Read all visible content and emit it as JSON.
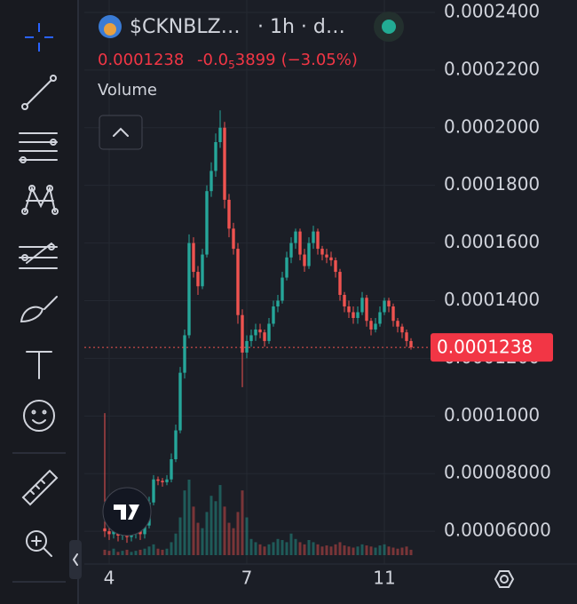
{
  "header": {
    "symbol": "$CKNBLZ…",
    "interval": "· 1h · d…",
    "change_prefix": "-0.0",
    "change_subscript": "5",
    "change_digits": "3899",
    "change_pct": "(−3.05%)",
    "volume_label": "Volume"
  },
  "chart_data": {
    "type": "candlestick",
    "open": [
      6.1e-05,
      6e-05,
      5.9e-05,
      6e-05,
      5.85e-05,
      5.95e-05,
      5.8e-05,
      5.9e-05,
      6e-05,
      5.9e-05,
      6.2e-05,
      7e-05,
      7.8e-05,
      7.75e-05,
      7.7e-05,
      7.8e-05,
      8.5e-05,
      9.5e-05,
      0.000115,
      0.000128,
      0.00016,
      0.00015,
      0.000145,
      0.000156,
      0.000178,
      0.000185,
      0.000195,
      0.0002,
      0.000175,
      0.000165,
      0.000158,
      0.000135,
      0.000122,
      0.000126,
      0.000128,
      0.00013,
      0.000129,
      0.000126,
      0.000132,
      0.000138,
      0.00014,
      0.000148,
      0.000155,
      0.00016,
      0.000164,
      0.000156,
      0.000152,
      0.00016,
      0.000164,
      0.000158,
      0.000156,
      0.000155,
      0.000154,
      0.00015,
      0.000142,
      0.000138,
      0.000136,
      0.000134,
      0.000136,
      0.000141,
      0.000133,
      0.00013,
      0.000132,
      0.000136,
      0.00014,
      0.000138,
      0.000133,
      0.000131,
      0.000129,
      0.000126
    ],
    "high": [
      0.000101,
      6.2e-05,
      6.15e-05,
      6.1e-05,
      6.1e-05,
      6.05e-05,
      6.05e-05,
      6.15e-05,
      6.1e-05,
      6.4e-05,
      7.2e-05,
      7.95e-05,
      7.9e-05,
      7.85e-05,
      7.95e-05,
      8.7e-05,
      9.7e-05,
      0.000117,
      0.00013,
      0.000163,
      0.000162,
      0.000152,
      0.000158,
      0.00018,
      0.000188,
      0.000198,
      0.000206,
      0.000202,
      0.000177,
      0.000167,
      0.00016,
      0.000137,
      0.000128,
      0.00013,
      0.000132,
      0.000132,
      0.00013,
      0.000134,
      0.00014,
      0.000142,
      0.00015,
      0.000157,
      0.000162,
      0.000165,
      0.000165,
      0.000158,
      0.000162,
      0.000166,
      0.000165,
      0.000159,
      0.000158,
      0.000157,
      0.000155,
      0.000151,
      0.000143,
      0.00014,
      0.000138,
      0.000138,
      0.000143,
      0.000142,
      0.000134,
      0.000134,
      0.000138,
      0.000141,
      0.000141,
      0.000139,
      0.000134,
      0.000132,
      0.00013,
      0.000127
    ],
    "low": [
      5.8e-05,
      5.7e-05,
      5.75e-05,
      5.65e-05,
      5.7e-05,
      5.6e-05,
      5.65e-05,
      5.75e-05,
      5.7e-05,
      5.75e-05,
      6.1e-05,
      6.9e-05,
      7.6e-05,
      7.55e-05,
      7.6e-05,
      7.7e-05,
      8.4e-05,
      9.4e-05,
      0.000113,
      0.000127,
      0.000148,
      0.000142,
      0.000144,
      0.000155,
      0.000176,
      0.000183,
      0.000193,
      0.000172,
      0.000162,
      0.000156,
      0.000132,
      0.00011,
      0.00012,
      0.000124,
      0.000126,
      0.000127,
      0.000124,
      0.000125,
      0.000131,
      0.000136,
      0.000139,
      0.000147,
      0.000153,
      0.000158,
      0.000154,
      0.00015,
      0.000151,
      0.000158,
      0.000156,
      0.000154,
      0.000153,
      0.000152,
      0.000148,
      0.00014,
      0.000136,
      0.000134,
      0.000132,
      0.000132,
      0.000135,
      0.000131,
      0.000128,
      0.000129,
      0.000131,
      0.000135,
      0.000136,
      0.000131,
      0.000129,
      0.000127,
      0.000124,
      0.000123
    ],
    "close": [
      6e-05,
      5.9e-05,
      6e-05,
      5.85e-05,
      5.95e-05,
      5.8e-05,
      5.9e-05,
      6e-05,
      5.9e-05,
      6.2e-05,
      7e-05,
      7.8e-05,
      7.75e-05,
      7.7e-05,
      7.8e-05,
      8.5e-05,
      9.5e-05,
      0.000115,
      0.000128,
      0.00016,
      0.00015,
      0.000145,
      0.000156,
      0.000178,
      0.000185,
      0.000195,
      0.0002,
      0.000175,
      0.000165,
      0.000158,
      0.000135,
      0.000122,
      0.000126,
      0.000128,
      0.00013,
      0.000129,
      0.000126,
      0.000132,
      0.000138,
      0.00014,
      0.000148,
      0.000155,
      0.00016,
      0.000164,
      0.000156,
      0.000152,
      0.00016,
      0.000164,
      0.000158,
      0.000156,
      0.000155,
      0.000154,
      0.00015,
      0.000142,
      0.000138,
      0.000136,
      0.000134,
      0.000136,
      0.000141,
      0.000133,
      0.00013,
      0.000132,
      0.000136,
      0.00014,
      0.000138,
      0.000133,
      0.000131,
      0.000129,
      0.000126,
      0.0001238
    ],
    "volume": [
      5,
      4,
      6,
      3,
      4,
      5,
      3,
      4,
      5,
      6,
      8,
      10,
      6,
      5,
      6,
      12,
      20,
      35,
      60,
      70,
      45,
      30,
      25,
      40,
      55,
      50,
      65,
      45,
      30,
      25,
      40,
      60,
      35,
      15,
      12,
      10,
      8,
      10,
      12,
      15,
      14,
      12,
      20,
      15,
      12,
      10,
      14,
      12,
      10,
      8,
      9,
      8,
      10,
      12,
      9,
      8,
      7,
      8,
      10,
      9,
      8,
      7,
      9,
      10,
      8,
      7,
      6,
      7,
      8,
      5
    ],
    "up_color": "#26a69a",
    "down_color": "#ef5350",
    "ylim": [
      4.71e-05,
      0.0002443
    ],
    "yticks": [
      {
        "value": 6e-05,
        "label": "0.00006000"
      },
      {
        "value": 8e-05,
        "label": "0.00008000"
      },
      {
        "value": 0.0001,
        "label": "0.0001000"
      },
      {
        "value": 0.00012,
        "label": "0.0001200"
      },
      {
        "value": 0.00014,
        "label": "0.0001400"
      },
      {
        "value": 0.00016,
        "label": "0.0001600"
      },
      {
        "value": 0.00018,
        "label": "0.0001800"
      },
      {
        "value": 0.0002,
        "label": "0.0002000"
      },
      {
        "value": 0.00022,
        "label": "0.0002200"
      },
      {
        "value": 0.00024,
        "label": "0.0002400"
      }
    ],
    "xticks": [
      {
        "value": 1,
        "label": "4"
      },
      {
        "value": 32,
        "label": "7"
      },
      {
        "value": 63,
        "label": "11"
      }
    ],
    "grid": true
  }
}
